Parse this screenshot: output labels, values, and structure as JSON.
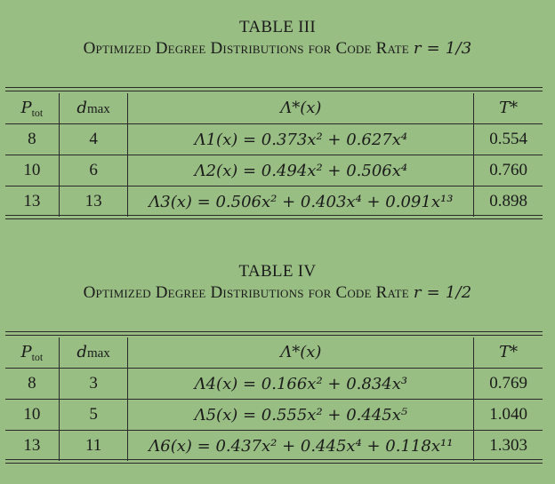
{
  "tables": [
    {
      "number": "TABLE III",
      "caption_prefix": "Optimized Degree Distributions for Code Rate",
      "caption_math": "r = 1/3",
      "headers": [
        "Ptot",
        "dmax",
        "Λ*(x)",
        "T*"
      ],
      "rows": [
        {
          "ptot": "8",
          "dmax": "4",
          "lambda": "Λ1(x) = 0.373x² + 0.627x⁴",
          "t": "0.554"
        },
        {
          "ptot": "10",
          "dmax": "6",
          "lambda": "Λ2(x) = 0.494x² + 0.506x⁴",
          "t": "0.760"
        },
        {
          "ptot": "13",
          "dmax": "13",
          "lambda": "Λ3(x) = 0.506x² + 0.403x⁴ + 0.091x¹³",
          "t": "0.898"
        }
      ]
    },
    {
      "number": "TABLE IV",
      "caption_prefix": "Optimized Degree Distributions for Code Rate",
      "caption_math": "r = 1/2",
      "headers": [
        "Ptot",
        "dmax",
        "Λ*(x)",
        "T*"
      ],
      "rows": [
        {
          "ptot": "8",
          "dmax": "3",
          "lambda": "Λ4(x) = 0.166x² + 0.834x³",
          "t": "0.769"
        },
        {
          "ptot": "10",
          "dmax": "5",
          "lambda": "Λ5(x) = 0.555x² + 0.445x⁵",
          "t": "1.040"
        },
        {
          "ptot": "13",
          "dmax": "11",
          "lambda": "Λ6(x) = 0.437x² + 0.445x⁴ + 0.118x¹¹",
          "t": "1.303"
        }
      ]
    }
  ]
}
